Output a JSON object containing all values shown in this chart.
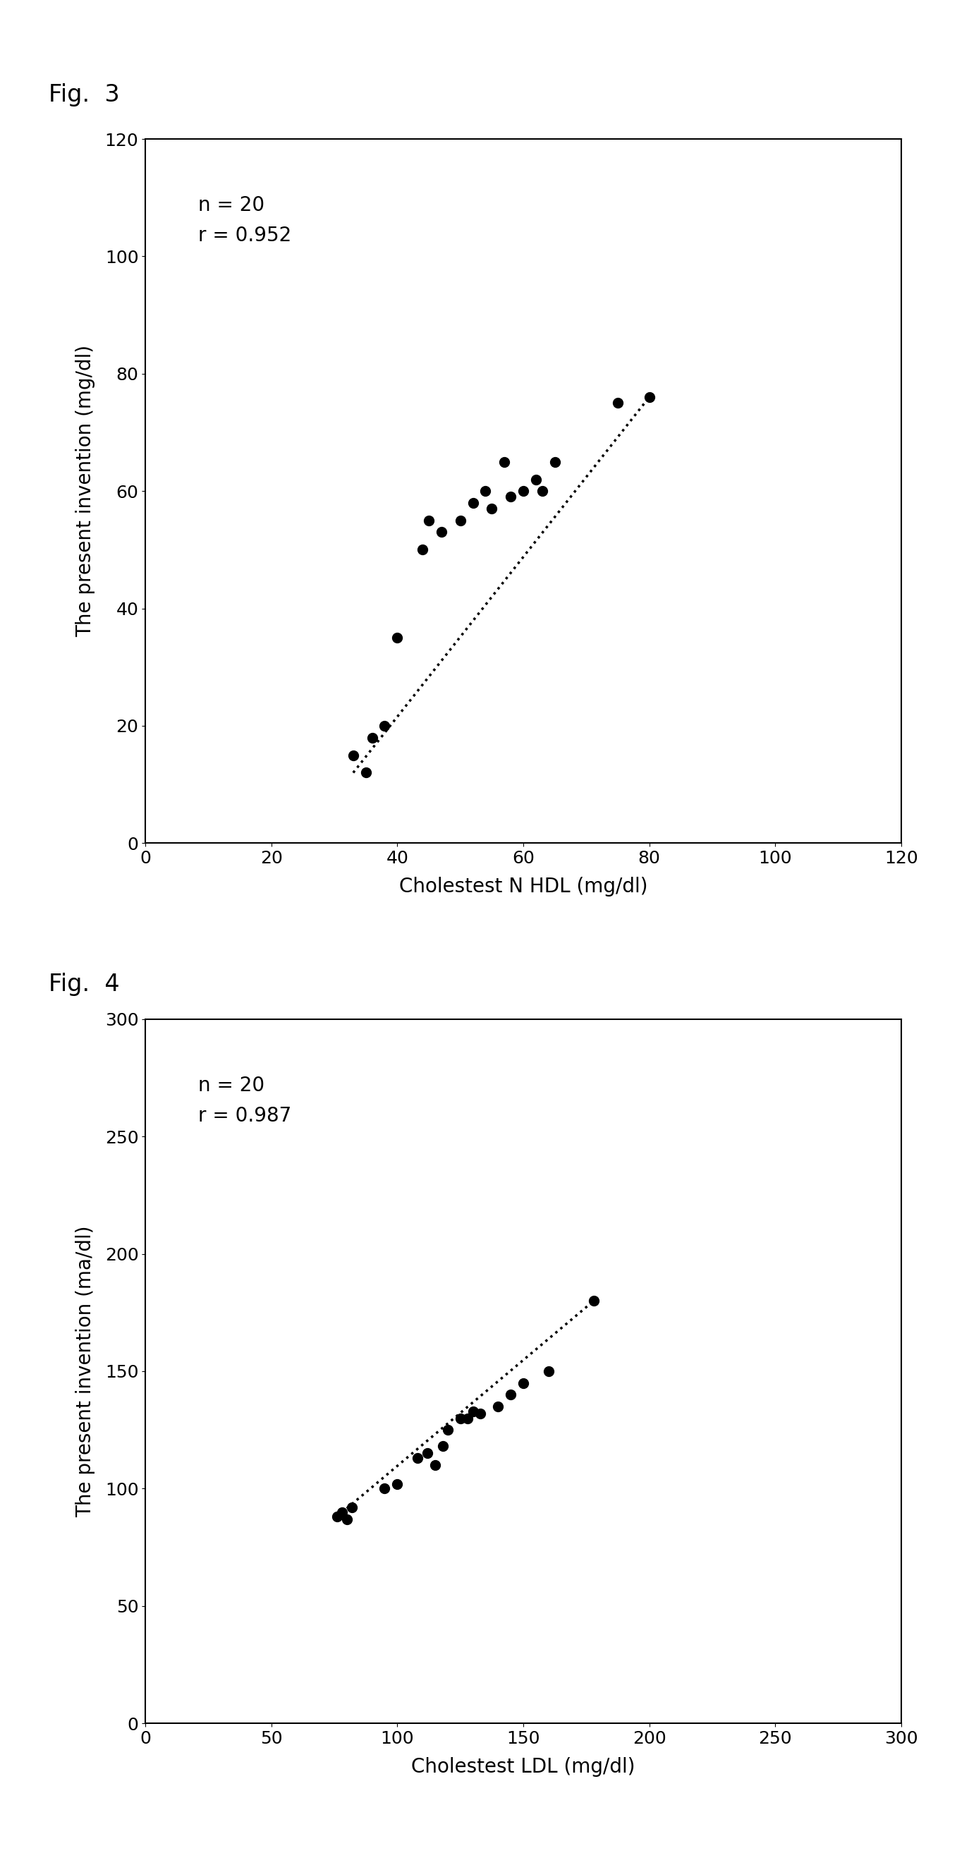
{
  "fig3": {
    "title": "Fig.  3",
    "xlabel": "Cholestest N HDL (mg/dl)",
    "ylabel": "The present invention (mg/dl)",
    "annotation": "n = 20\nr = 0.952",
    "xlim": [
      0,
      120
    ],
    "ylim": [
      0,
      120
    ],
    "xticks": [
      0,
      20,
      40,
      60,
      80,
      100,
      120
    ],
    "yticks": [
      0,
      20,
      40,
      60,
      80,
      100,
      120
    ],
    "x_data": [
      33,
      35,
      36,
      38,
      40,
      44,
      45,
      47,
      50,
      52,
      54,
      55,
      57,
      58,
      60,
      62,
      63,
      65,
      75,
      80
    ],
    "y_data": [
      15,
      12,
      18,
      20,
      35,
      50,
      55,
      53,
      55,
      58,
      60,
      57,
      65,
      59,
      60,
      62,
      60,
      65,
      75,
      76
    ],
    "dot_color": "#000000",
    "dot_size": 100,
    "line_x": [
      33,
      80
    ],
    "line_y": [
      12,
      76
    ]
  },
  "fig4": {
    "title": "Fig.  4",
    "xlabel": "Cholestest LDL (mg/dl)",
    "ylabel": "The present invention (ma/dl)",
    "annotation": "n = 20\nr = 0.987",
    "xlim": [
      0,
      300
    ],
    "ylim": [
      0,
      300
    ],
    "xticks": [
      0,
      50,
      100,
      150,
      200,
      250,
      300
    ],
    "yticks": [
      0,
      50,
      100,
      150,
      200,
      250,
      300
    ],
    "x_data": [
      76,
      78,
      80,
      82,
      95,
      100,
      108,
      112,
      115,
      118,
      120,
      125,
      128,
      130,
      133,
      140,
      145,
      150,
      160,
      178
    ],
    "y_data": [
      88,
      90,
      87,
      92,
      100,
      102,
      113,
      115,
      110,
      118,
      125,
      130,
      130,
      133,
      132,
      135,
      140,
      145,
      150,
      180
    ],
    "dot_color": "#000000",
    "dot_size": 100,
    "line_x": [
      76,
      178
    ],
    "line_y": [
      88,
      180
    ]
  },
  "background_color": "#ffffff",
  "title_fontsize": 24,
  "label_fontsize": 20,
  "tick_fontsize": 18,
  "annotation_fontsize": 20
}
